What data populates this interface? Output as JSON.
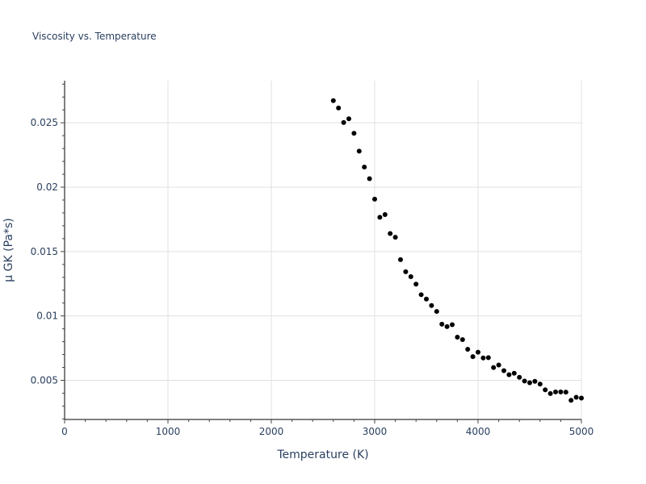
{
  "title": "Viscosity vs. Temperature",
  "colors": {
    "marker": "#000000",
    "grid": "#e1e1e1",
    "axis_line": "#000000",
    "text": "#2a3f5f",
    "background": "#ffffff"
  },
  "chart_data": {
    "type": "scatter",
    "title": "Viscosity vs. Temperature",
    "xlabel": "Temperature (K)",
    "ylabel": "μ GK (Pa*s)",
    "xlim": [
      0,
      5000
    ],
    "ylim": [
      0.00196,
      0.02827
    ],
    "grid": true,
    "legend": null,
    "x_ticks": [
      0,
      1000,
      2000,
      3000,
      4000,
      5000
    ],
    "x_tick_labels": [
      "0",
      "1000",
      "2000",
      "3000",
      "4000",
      "5000"
    ],
    "y_ticks": [
      0.005,
      0.01,
      0.015,
      0.02,
      0.025
    ],
    "y_tick_labels": [
      "0.005",
      "0.01",
      "0.015",
      "0.02",
      "0.025"
    ],
    "x_minor_step": 200,
    "y_minor_step": 0.001,
    "series": [
      {
        "name": "μ GK",
        "marker": "circle",
        "x": [
          2600,
          2650,
          2700,
          2750,
          2800,
          2850,
          2900,
          2950,
          3000,
          3050,
          3100,
          3150,
          3200,
          3250,
          3300,
          3350,
          3400,
          3450,
          3500,
          3550,
          3600,
          3650,
          3700,
          3750,
          3800,
          3850,
          3900,
          3950,
          4000,
          4050,
          4100,
          4150,
          4200,
          4250,
          4300,
          4350,
          4400,
          4450,
          4500,
          4550,
          4600,
          4650,
          4700,
          4750,
          4800,
          4850,
          4900,
          4950,
          5000
        ],
        "y": [
          0.02672,
          0.02615,
          0.02502,
          0.02531,
          0.02418,
          0.0228,
          0.02156,
          0.02066,
          0.01907,
          0.01766,
          0.01787,
          0.0164,
          0.01611,
          0.01437,
          0.01343,
          0.01305,
          0.01247,
          0.01165,
          0.01131,
          0.01081,
          0.01035,
          0.00936,
          0.00917,
          0.00932,
          0.00835,
          0.00816,
          0.00741,
          0.00684,
          0.00718,
          0.00674,
          0.00676,
          0.00599,
          0.00619,
          0.00575,
          0.00544,
          0.00555,
          0.00523,
          0.00494,
          0.00481,
          0.00492,
          0.00471,
          0.00426,
          0.00397,
          0.0041,
          0.0041,
          0.00408,
          0.00345,
          0.00368,
          0.00362
        ]
      }
    ]
  }
}
